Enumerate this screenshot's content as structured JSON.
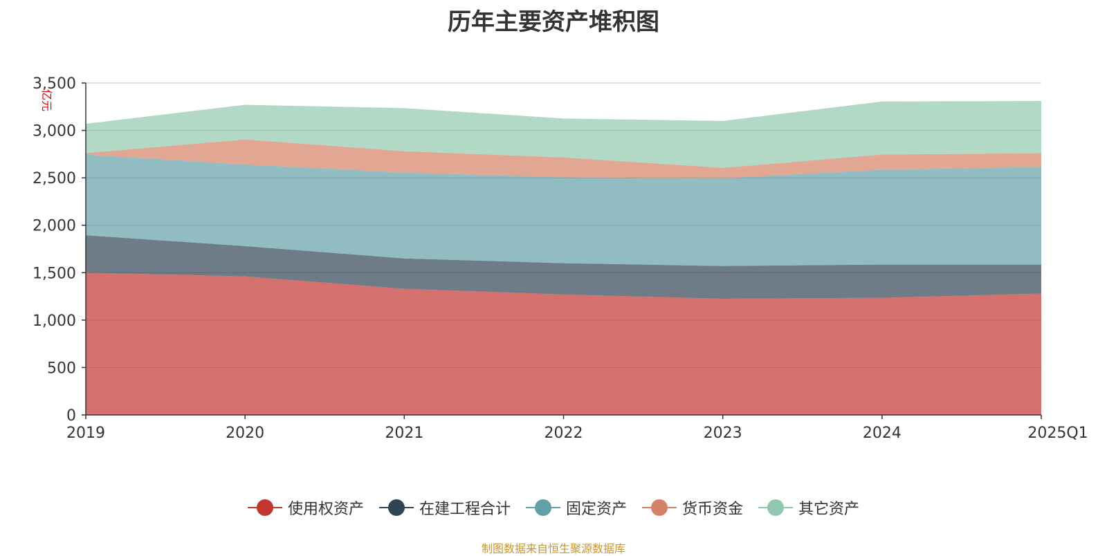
{
  "title": "历年主要资产堆积图",
  "source": "制图数据来自恒生聚源数据库",
  "chart_data": {
    "type": "area",
    "stacked": true,
    "title": "历年主要资产堆积图",
    "ylabel": "亿元",
    "ylim": [
      0,
      3500
    ],
    "yticks": [
      0,
      500,
      1000,
      1500,
      2000,
      2500,
      3000,
      3500
    ],
    "ytick_labels": [
      "0",
      "500",
      "1,000",
      "1,500",
      "2,000",
      "2,500",
      "3,000",
      "3,500"
    ],
    "categories": [
      "2019",
      "2020",
      "2021",
      "2022",
      "2023",
      "2024",
      "2025Q1"
    ],
    "grid": true,
    "legend_position": "bottom",
    "series": [
      {
        "name": "使用权资产",
        "color": "#c23531",
        "values": [
          1500,
          1460,
          1330,
          1270,
          1225,
          1235,
          1280
        ]
      },
      {
        "name": "在建工程合计",
        "color": "#2f4554",
        "values": [
          395,
          320,
          320,
          330,
          345,
          350,
          305
        ]
      },
      {
        "name": "固定资产",
        "color": "#61a0a8",
        "values": [
          850,
          860,
          905,
          905,
          925,
          1000,
          1030
        ]
      },
      {
        "name": "货币资金",
        "color": "#d48265",
        "values": [
          15,
          265,
          225,
          210,
          110,
          160,
          145
        ]
      },
      {
        "name": "其它资产",
        "color": "#91c7ae",
        "values": [
          310,
          365,
          455,
          410,
          495,
          560,
          550
        ]
      }
    ]
  }
}
